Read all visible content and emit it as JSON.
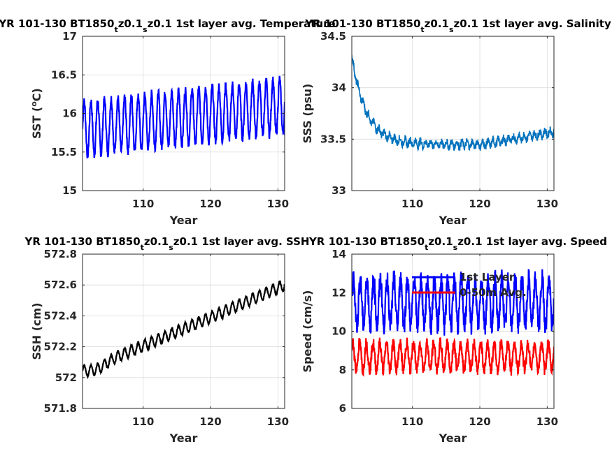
{
  "chart_data": [
    {
      "type": "line",
      "title": "YR 101-130 BT1850",
      "title_sub1": "t",
      "title_mid": "z0.1",
      "title_sub2": "s",
      "title_end": "z0.1 1st layer avg. Temperature",
      "xlabel": "Year",
      "ylabel_pre": "SST (",
      "ylabel_sup": "o",
      "ylabel_post": "C)",
      "xlim": [
        101,
        131
      ],
      "ylim": [
        15,
        17
      ],
      "xticks": [
        110,
        120,
        130
      ],
      "yticks": [
        15,
        15.5,
        16,
        16.5,
        17
      ],
      "ytick_labels": [
        "15",
        "15.5",
        "16",
        "16.5",
        "17"
      ],
      "grid": true,
      "series": [
        {
          "color": "#0000ff",
          "base_start": 15.8,
          "base_end": 16.1,
          "amplitude": 0.35,
          "period_years": 1
        }
      ]
    },
    {
      "type": "line",
      "title": "YR 101-130 BT1850",
      "title_sub1": "t",
      "title_mid": "z0.1",
      "title_sub2": "s",
      "title_end": "z0.1 1st layer avg. Salinity",
      "xlabel": "Year",
      "ylabel": "SSS (psu)",
      "xlim": [
        101,
        131
      ],
      "ylim": [
        33,
        34.5
      ],
      "xticks": [
        110,
        120,
        130
      ],
      "yticks": [
        33,
        33.5,
        34,
        34.5
      ],
      "ytick_labels": [
        "33",
        "33.5",
        "34",
        "34.5"
      ],
      "grid": true,
      "series": [
        {
          "color": "#0072bd",
          "start": 34.3,
          "equilibrium": 33.45,
          "end": 33.55
        }
      ]
    },
    {
      "type": "line",
      "title": "YR 101-130 BT1850",
      "title_sub1": "t",
      "title_mid": "z0.1",
      "title_sub2": "s",
      "title_end": "z0.1 1st layer avg. SSH",
      "xlabel": "Year",
      "ylabel": "SSH (cm)",
      "xlim": [
        101,
        131
      ],
      "ylim": [
        571.8,
        572.8
      ],
      "xticks": [
        110,
        120,
        130
      ],
      "yticks": [
        571.8,
        572,
        572.2,
        572.4,
        572.6,
        572.8
      ],
      "ytick_labels": [
        "571.8",
        "572",
        "572.2",
        "572.4",
        "572.6",
        "572.8"
      ],
      "grid": true,
      "series": [
        {
          "color": "#000000",
          "start": 572.05,
          "end": 572.6,
          "amplitude": 0.035,
          "period_years": 1
        }
      ]
    },
    {
      "type": "line",
      "title": "YR 101-130 BT1850",
      "title_sub1": "t",
      "title_mid": "z0.1",
      "title_sub2": "s",
      "title_end": "z0.1 1st layer avg. Speed",
      "xlabel": "Year",
      "ylabel": "Speed (cm/s)",
      "xlim": [
        101,
        131
      ],
      "ylim": [
        6,
        14
      ],
      "xticks": [
        110,
        120,
        130
      ],
      "yticks": [
        6,
        8,
        10,
        12,
        14
      ],
      "ytick_labels": [
        "6",
        "8",
        "10",
        "12",
        "14"
      ],
      "grid": true,
      "legend": "top-right",
      "series": [
        {
          "name": "1st Layer",
          "color": "#0000ff",
          "base": 11.5,
          "amplitude": 1.2,
          "period_years": 1
        },
        {
          "name": "0-50m Avg.",
          "color": "#ff0000",
          "base": 8.7,
          "amplitude": 0.7,
          "period_years": 1
        }
      ]
    }
  ]
}
